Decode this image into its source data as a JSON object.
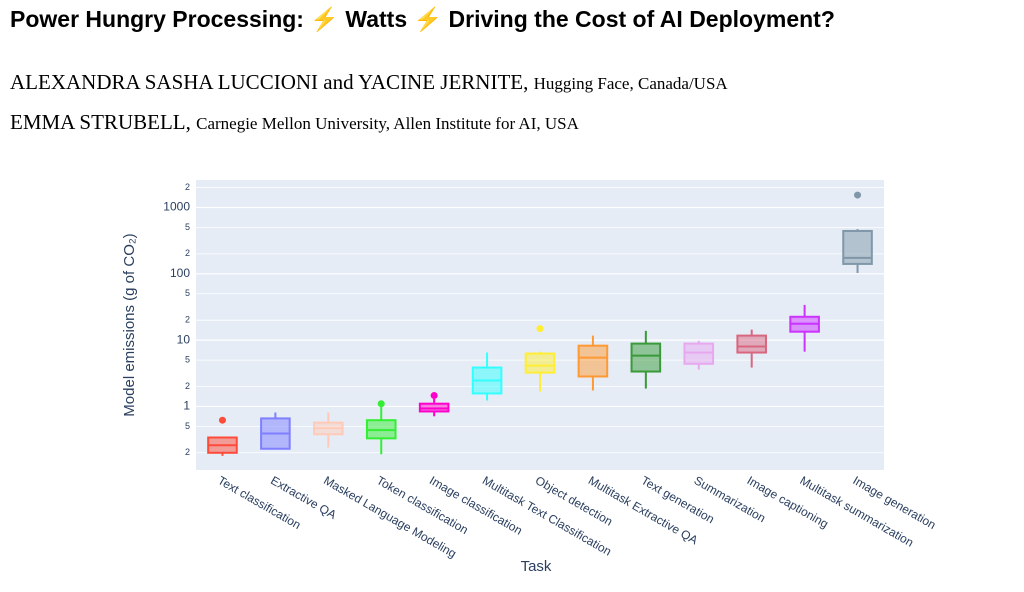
{
  "header": {
    "title": "Power Hungry Processing: ⚡ Watts ⚡ Driving the Cost of AI Deployment?"
  },
  "authors": [
    {
      "names": "ALEXANDRA SASHA LUCCIONI and YACINE JERNITE,",
      "affiliation": "Hugging Face, Canada/USA"
    },
    {
      "names": "EMMA STRUBELL,",
      "affiliation": "Carnegie Mellon University, Allen Institute for AI, USA"
    }
  ],
  "chart_data": {
    "type": "box",
    "x_label": "Task",
    "y_label": "Model emissions (g of CO₂)",
    "yscale": "log",
    "grid": true,
    "ylim": [
      0.11,
      2600
    ],
    "yticks": [
      {
        "value": 0.2,
        "label": "2"
      },
      {
        "value": 0.5,
        "label": "5"
      },
      1,
      2,
      5,
      10,
      {
        "value": 20,
        "label": "2"
      },
      {
        "value": 50,
        "label": "5"
      },
      100,
      {
        "value": 200,
        "label": "2"
      },
      {
        "value": 500,
        "label": "5"
      },
      1000,
      {
        "value": 2000,
        "label": "2"
      }
    ],
    "categories": [
      "Text classification",
      "Extractive QA",
      "Masked Language Modeling",
      "Token classification",
      "Image classification",
      "Multitask Text Classification",
      "Object detection",
      "Multitask Extractive QA",
      "Text generation",
      "Summarization",
      "Image captioning",
      "Multitask summarization",
      "Image generation"
    ],
    "colors": [
      "#ff4b3a",
      "#7f7fff",
      "#ffcbb8",
      "#33ee33",
      "#ff00cc",
      "#33ffff",
      "#ffee33",
      "#ff9933",
      "#3a9a3a",
      "#e8a8f0",
      "#d9667f",
      "#cc33ff",
      "#7f97a8"
    ],
    "values": [
      {
        "min": 0.18,
        "q1": 0.2,
        "median": 0.26,
        "q3": 0.34,
        "max": 0.34,
        "outliers": [
          0.62
        ]
      },
      {
        "min": 0.23,
        "q1": 0.23,
        "median": 0.39,
        "q3": 0.66,
        "max": 0.81,
        "outliers": []
      },
      {
        "min": 0.24,
        "q1": 0.38,
        "median": 0.47,
        "q3": 0.57,
        "max": 0.81,
        "outliers": []
      },
      {
        "min": 0.19,
        "q1": 0.33,
        "median": 0.44,
        "q3": 0.62,
        "max": 1.0,
        "outliers": [
          1.1
        ]
      },
      {
        "min": 0.71,
        "q1": 0.84,
        "median": 0.93,
        "q3": 1.1,
        "max": 1.3,
        "outliers": [
          1.46
        ]
      },
      {
        "min": 1.23,
        "q1": 1.57,
        "median": 2.46,
        "q3": 3.86,
        "max": 6.5,
        "outliers": []
      },
      {
        "min": 1.68,
        "q1": 3.24,
        "median": 4.13,
        "q3": 6.27,
        "max": 6.7,
        "outliers": [
          14.9
        ]
      },
      {
        "min": 1.74,
        "q1": 2.83,
        "median": 5.45,
        "q3": 8.25,
        "max": 11.7,
        "outliers": []
      },
      {
        "min": 1.86,
        "q1": 3.36,
        "median": 5.85,
        "q3": 8.87,
        "max": 13.8,
        "outliers": []
      },
      {
        "min": 3.6,
        "q1": 4.4,
        "median": 6.5,
        "q3": 8.87,
        "max": 9.8,
        "outliers": []
      },
      {
        "min": 3.86,
        "q1": 6.5,
        "median": 8.0,
        "q3": 11.7,
        "max": 14.4,
        "outliers": []
      },
      {
        "min": 6.7,
        "q1": 13.4,
        "median": 17.7,
        "q3": 22.5,
        "max": 34,
        "outliers": []
      },
      {
        "min": 103,
        "q1": 141,
        "median": 174,
        "q3": 443,
        "max": 472,
        "outliers": [
          1540
        ]
      }
    ]
  }
}
